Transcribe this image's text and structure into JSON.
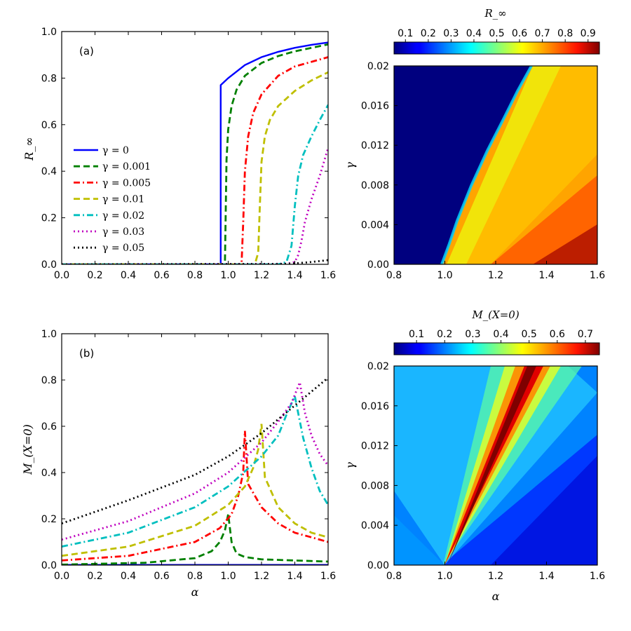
{
  "chart_data": [
    {
      "panel": "top-left",
      "type": "line",
      "annotation": "(a)",
      "xlabel": "",
      "ylabel": "R_∞",
      "xlim": [
        0,
        1.6
      ],
      "ylim": [
        0,
        1.0
      ],
      "xticks": [
        "0.0",
        "0.2",
        "0.4",
        "0.6",
        "0.8",
        "1.0",
        "1.2",
        "1.4",
        "1.6"
      ],
      "yticks": [
        "0.0",
        "0.2",
        "0.4",
        "0.6",
        "0.8",
        "1.0"
      ],
      "legend_position": "center-left",
      "series": [
        {
          "name": "γ = 0",
          "gamma": 0,
          "color": "#0000ff",
          "dash": "solid",
          "x": [
            0,
            0.955,
            0.955,
            1.0,
            1.1,
            1.2,
            1.3,
            1.4,
            1.5,
            1.6
          ],
          "y": [
            0,
            0,
            0.77,
            0.8,
            0.856,
            0.89,
            0.913,
            0.93,
            0.943,
            0.953
          ]
        },
        {
          "name": "γ = 0.001",
          "gamma": 0.001,
          "color": "#008000",
          "dash": "dashed",
          "x": [
            0,
            0.98,
            0.99,
            1.0,
            1.02,
            1.05,
            1.1,
            1.2,
            1.3,
            1.4,
            1.5,
            1.6
          ],
          "y": [
            0,
            0,
            0.45,
            0.58,
            0.68,
            0.75,
            0.81,
            0.865,
            0.895,
            0.915,
            0.93,
            0.945
          ]
        },
        {
          "name": "γ = 0.005",
          "gamma": 0.005,
          "color": "#ff0000",
          "dash": "dashdot",
          "x": [
            0,
            1.08,
            1.09,
            1.1,
            1.12,
            1.15,
            1.2,
            1.3,
            1.4,
            1.5,
            1.6
          ],
          "y": [
            0,
            0,
            0.18,
            0.4,
            0.55,
            0.65,
            0.73,
            0.81,
            0.85,
            0.87,
            0.89
          ]
        },
        {
          "name": "γ = 0.01",
          "gamma": 0.01,
          "color": "#bfbf00",
          "dash": "dashed",
          "x": [
            0,
            1.16,
            1.18,
            1.19,
            1.2,
            1.22,
            1.25,
            1.3,
            1.4,
            1.5,
            1.6
          ],
          "y": [
            0,
            0,
            0.05,
            0.25,
            0.44,
            0.55,
            0.62,
            0.68,
            0.745,
            0.79,
            0.825
          ]
        },
        {
          "name": "γ = 0.02",
          "gamma": 0.02,
          "color": "#00bfbf",
          "dash": "dashdot",
          "x": [
            0,
            1.3,
            1.35,
            1.38,
            1.4,
            1.42,
            1.45,
            1.5,
            1.55,
            1.6
          ],
          "y": [
            0,
            0,
            0.01,
            0.08,
            0.25,
            0.38,
            0.47,
            0.55,
            0.62,
            0.685
          ]
        },
        {
          "name": "γ = 0.03",
          "gamma": 0.03,
          "color": "#bf00bf",
          "dash": "dotted",
          "x": [
            0,
            1.35,
            1.4,
            1.42,
            1.44,
            1.46,
            1.5,
            1.55,
            1.6
          ],
          "y": [
            0,
            0.002,
            0.01,
            0.04,
            0.1,
            0.18,
            0.28,
            0.38,
            0.5
          ]
        },
        {
          "name": "γ = 0.05",
          "gamma": 0.05,
          "color": "#000000",
          "dash": "dotted",
          "x": [
            0,
            1.3,
            1.4,
            1.5,
            1.6
          ],
          "y": [
            0,
            0.001,
            0.004,
            0.01,
            0.018
          ]
        }
      ]
    },
    {
      "panel": "top-right",
      "type": "heatmap",
      "xlabel": "",
      "ylabel": "γ",
      "xlim": [
        0.8,
        1.6
      ],
      "ylim": [
        0,
        0.02
      ],
      "xticks": [
        "0.8",
        "1.0",
        "1.2",
        "1.4",
        "1.6"
      ],
      "yticks": [
        "0.00",
        "0.004",
        "0.008",
        "0.012",
        "0.016",
        "0.02"
      ],
      "colorbar_title": "R_∞",
      "colorbar_range": [
        0.05,
        0.95
      ],
      "colorbar_ticks": [
        "0.1",
        "0.2",
        "0.3",
        "0.4",
        "0.5",
        "0.6",
        "0.7",
        "0.8",
        "0.9"
      ],
      "colormap": "jet",
      "description_boundary_alpha_at_gamma0": 0.98,
      "description_boundary_alpha_at_gamma002": 1.32
    },
    {
      "panel": "bottom-left",
      "type": "line",
      "annotation": "(b)",
      "xlabel": "α",
      "ylabel": "M_(X=0)",
      "xlim": [
        0,
        1.6
      ],
      "ylim": [
        0,
        1.0
      ],
      "xticks": [
        "0.0",
        "0.2",
        "0.4",
        "0.6",
        "0.8",
        "1.0",
        "1.2",
        "1.4",
        "1.6"
      ],
      "yticks": [
        "0.0",
        "0.2",
        "0.4",
        "0.6",
        "0.8",
        "1.0"
      ],
      "series": [
        {
          "name": "γ = 0",
          "color": "#0000ff",
          "dash": "solid",
          "x": [
            0,
            1.6
          ],
          "y": [
            0.001,
            0.001
          ]
        },
        {
          "name": "γ = 0.001",
          "color": "#008000",
          "dash": "dashed",
          "x": [
            0,
            0.5,
            0.8,
            0.9,
            0.95,
            0.98,
            1.0,
            1.02,
            1.05,
            1.1,
            1.2,
            1.4,
            1.6
          ],
          "y": [
            0.002,
            0.01,
            0.03,
            0.06,
            0.1,
            0.15,
            0.22,
            0.1,
            0.05,
            0.035,
            0.025,
            0.02,
            0.015
          ]
        },
        {
          "name": "γ = 0.005",
          "color": "#ff0000",
          "dash": "dashdot",
          "x": [
            0,
            0.4,
            0.8,
            0.95,
            1.02,
            1.06,
            1.09,
            1.1,
            1.12,
            1.2,
            1.3,
            1.4,
            1.5,
            1.6
          ],
          "y": [
            0.02,
            0.04,
            0.1,
            0.16,
            0.22,
            0.3,
            0.4,
            0.58,
            0.35,
            0.25,
            0.18,
            0.14,
            0.12,
            0.1
          ]
        },
        {
          "name": "γ = 0.01",
          "color": "#bfbf00",
          "dash": "dashed",
          "x": [
            0,
            0.4,
            0.8,
            1.0,
            1.1,
            1.15,
            1.18,
            1.2,
            1.22,
            1.3,
            1.4,
            1.5,
            1.6
          ],
          "y": [
            0.04,
            0.08,
            0.17,
            0.26,
            0.34,
            0.42,
            0.5,
            0.61,
            0.38,
            0.25,
            0.18,
            0.14,
            0.12
          ]
        },
        {
          "name": "γ = 0.02",
          "color": "#00bfbf",
          "dash": "dashdot",
          "x": [
            0,
            0.4,
            0.8,
            1.0,
            1.2,
            1.3,
            1.35,
            1.4,
            1.45,
            1.5,
            1.55,
            1.6
          ],
          "y": [
            0.08,
            0.14,
            0.25,
            0.34,
            0.47,
            0.56,
            0.65,
            0.73,
            0.55,
            0.42,
            0.32,
            0.26
          ]
        },
        {
          "name": "γ = 0.03",
          "color": "#bf00bf",
          "dash": "dotted",
          "x": [
            0,
            0.4,
            0.8,
            1.0,
            1.2,
            1.3,
            1.38,
            1.43,
            1.46,
            1.5,
            1.55,
            1.6
          ],
          "y": [
            0.11,
            0.19,
            0.31,
            0.4,
            0.53,
            0.62,
            0.7,
            0.79,
            0.66,
            0.56,
            0.48,
            0.43
          ]
        },
        {
          "name": "γ = 0.05",
          "color": "#000000",
          "dash": "dotted",
          "x": [
            0,
            0.4,
            0.8,
            1.0,
            1.2,
            1.4,
            1.6
          ],
          "y": [
            0.18,
            0.28,
            0.39,
            0.47,
            0.57,
            0.69,
            0.81
          ]
        }
      ]
    },
    {
      "panel": "bottom-right",
      "type": "heatmap",
      "xlabel": "α",
      "ylabel": "γ",
      "xlim": [
        0.8,
        1.6
      ],
      "ylim": [
        0,
        0.02
      ],
      "xticks": [
        "0.8",
        "1.0",
        "1.2",
        "1.4",
        "1.6"
      ],
      "yticks": [
        "0.00",
        "0.004",
        "0.008",
        "0.012",
        "0.016",
        "0.02"
      ],
      "colorbar_title": "M_(X=0)",
      "colorbar_range": [
        0.02,
        0.75
      ],
      "colorbar_ticks": [
        "0.1",
        "0.2",
        "0.3",
        "0.4",
        "0.5",
        "0.6",
        "0.7"
      ],
      "colormap": "jet",
      "description_ridge_alpha_at_gamma0": 0.98,
      "description_ridge_alpha_at_gamma002": 1.32
    }
  ]
}
